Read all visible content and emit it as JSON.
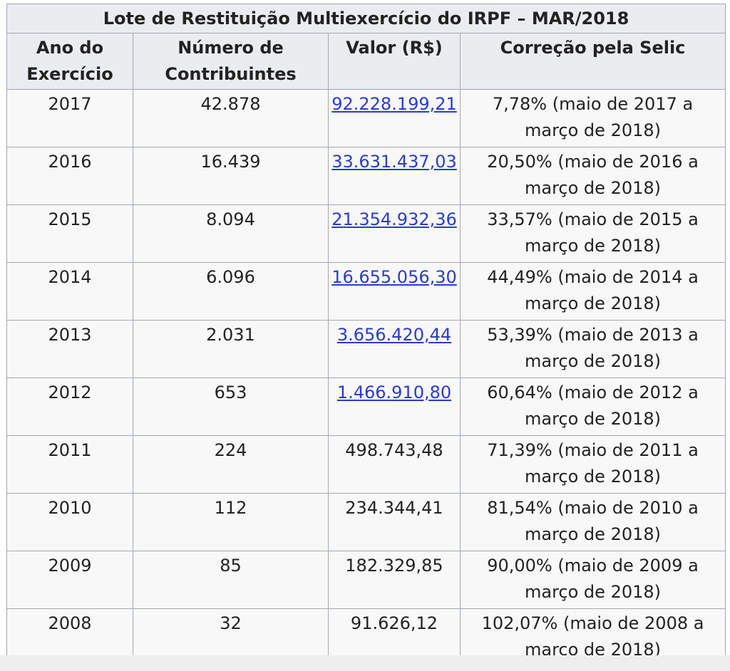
{
  "table": {
    "title": "Lote de Restituição Multiexercício do IRPF – MAR/2018",
    "headers": {
      "ano": "Ano do Exercício",
      "contribuintes": "Número de Contribuintes",
      "valor": "Valor (R$)",
      "correcao": "Correção pela Selic"
    },
    "rows": [
      {
        "ano": "2017",
        "contribuintes": "42.878",
        "valor": "92.228.199,21",
        "valor_is_link": true,
        "correcao": "7,78% (maio de 2017 a março de 2018)"
      },
      {
        "ano": "2016",
        "contribuintes": "16.439",
        "valor": "33.631.437,03",
        "valor_is_link": true,
        "correcao": "20,50% (maio de 2016 a março de 2018)"
      },
      {
        "ano": "2015",
        "contribuintes": "8.094",
        "valor": "21.354.932,36",
        "valor_is_link": true,
        "correcao": "33,57% (maio de 2015 a março de 2018)"
      },
      {
        "ano": "2014",
        "contribuintes": "6.096",
        "valor": "16.655.056,30",
        "valor_is_link": true,
        "correcao": "44,49% (maio de 2014 a março de 2018)"
      },
      {
        "ano": "2013",
        "contribuintes": "2.031",
        "valor": "3.656.420,44",
        "valor_is_link": true,
        "correcao": "53,39% (maio de 2013 a março de 2018)"
      },
      {
        "ano": "2012",
        "contribuintes": "653",
        "valor": "1.466.910,80",
        "valor_is_link": true,
        "correcao": "60,64% (maio de 2012 a março de 2018)"
      },
      {
        "ano": "2011",
        "contribuintes": "224",
        "valor": "498.743,48",
        "valor_is_link": false,
        "correcao": "71,39% (maio de 2011 a março de 2018)"
      },
      {
        "ano": "2010",
        "contribuintes": "112",
        "valor": "234.344,41",
        "valor_is_link": false,
        "correcao": "81,54% (maio de 2010 a março de 2018)"
      },
      {
        "ano": "2009",
        "contribuintes": "85",
        "valor": "182.329,85",
        "valor_is_link": false,
        "correcao": "90,00% (maio de 2009 a março de 2018)"
      },
      {
        "ano": "2008",
        "contribuintes": "32",
        "valor": "91.626,12",
        "valor_is_link": false,
        "correcao": "102,07% (maio de 2008 a março de 2018)"
      }
    ]
  },
  "colors": {
    "link": "#2a3ccb",
    "border": "#a2a9b1",
    "header_bg": "#eaecf0",
    "cell_bg": "#f8f8f8"
  }
}
